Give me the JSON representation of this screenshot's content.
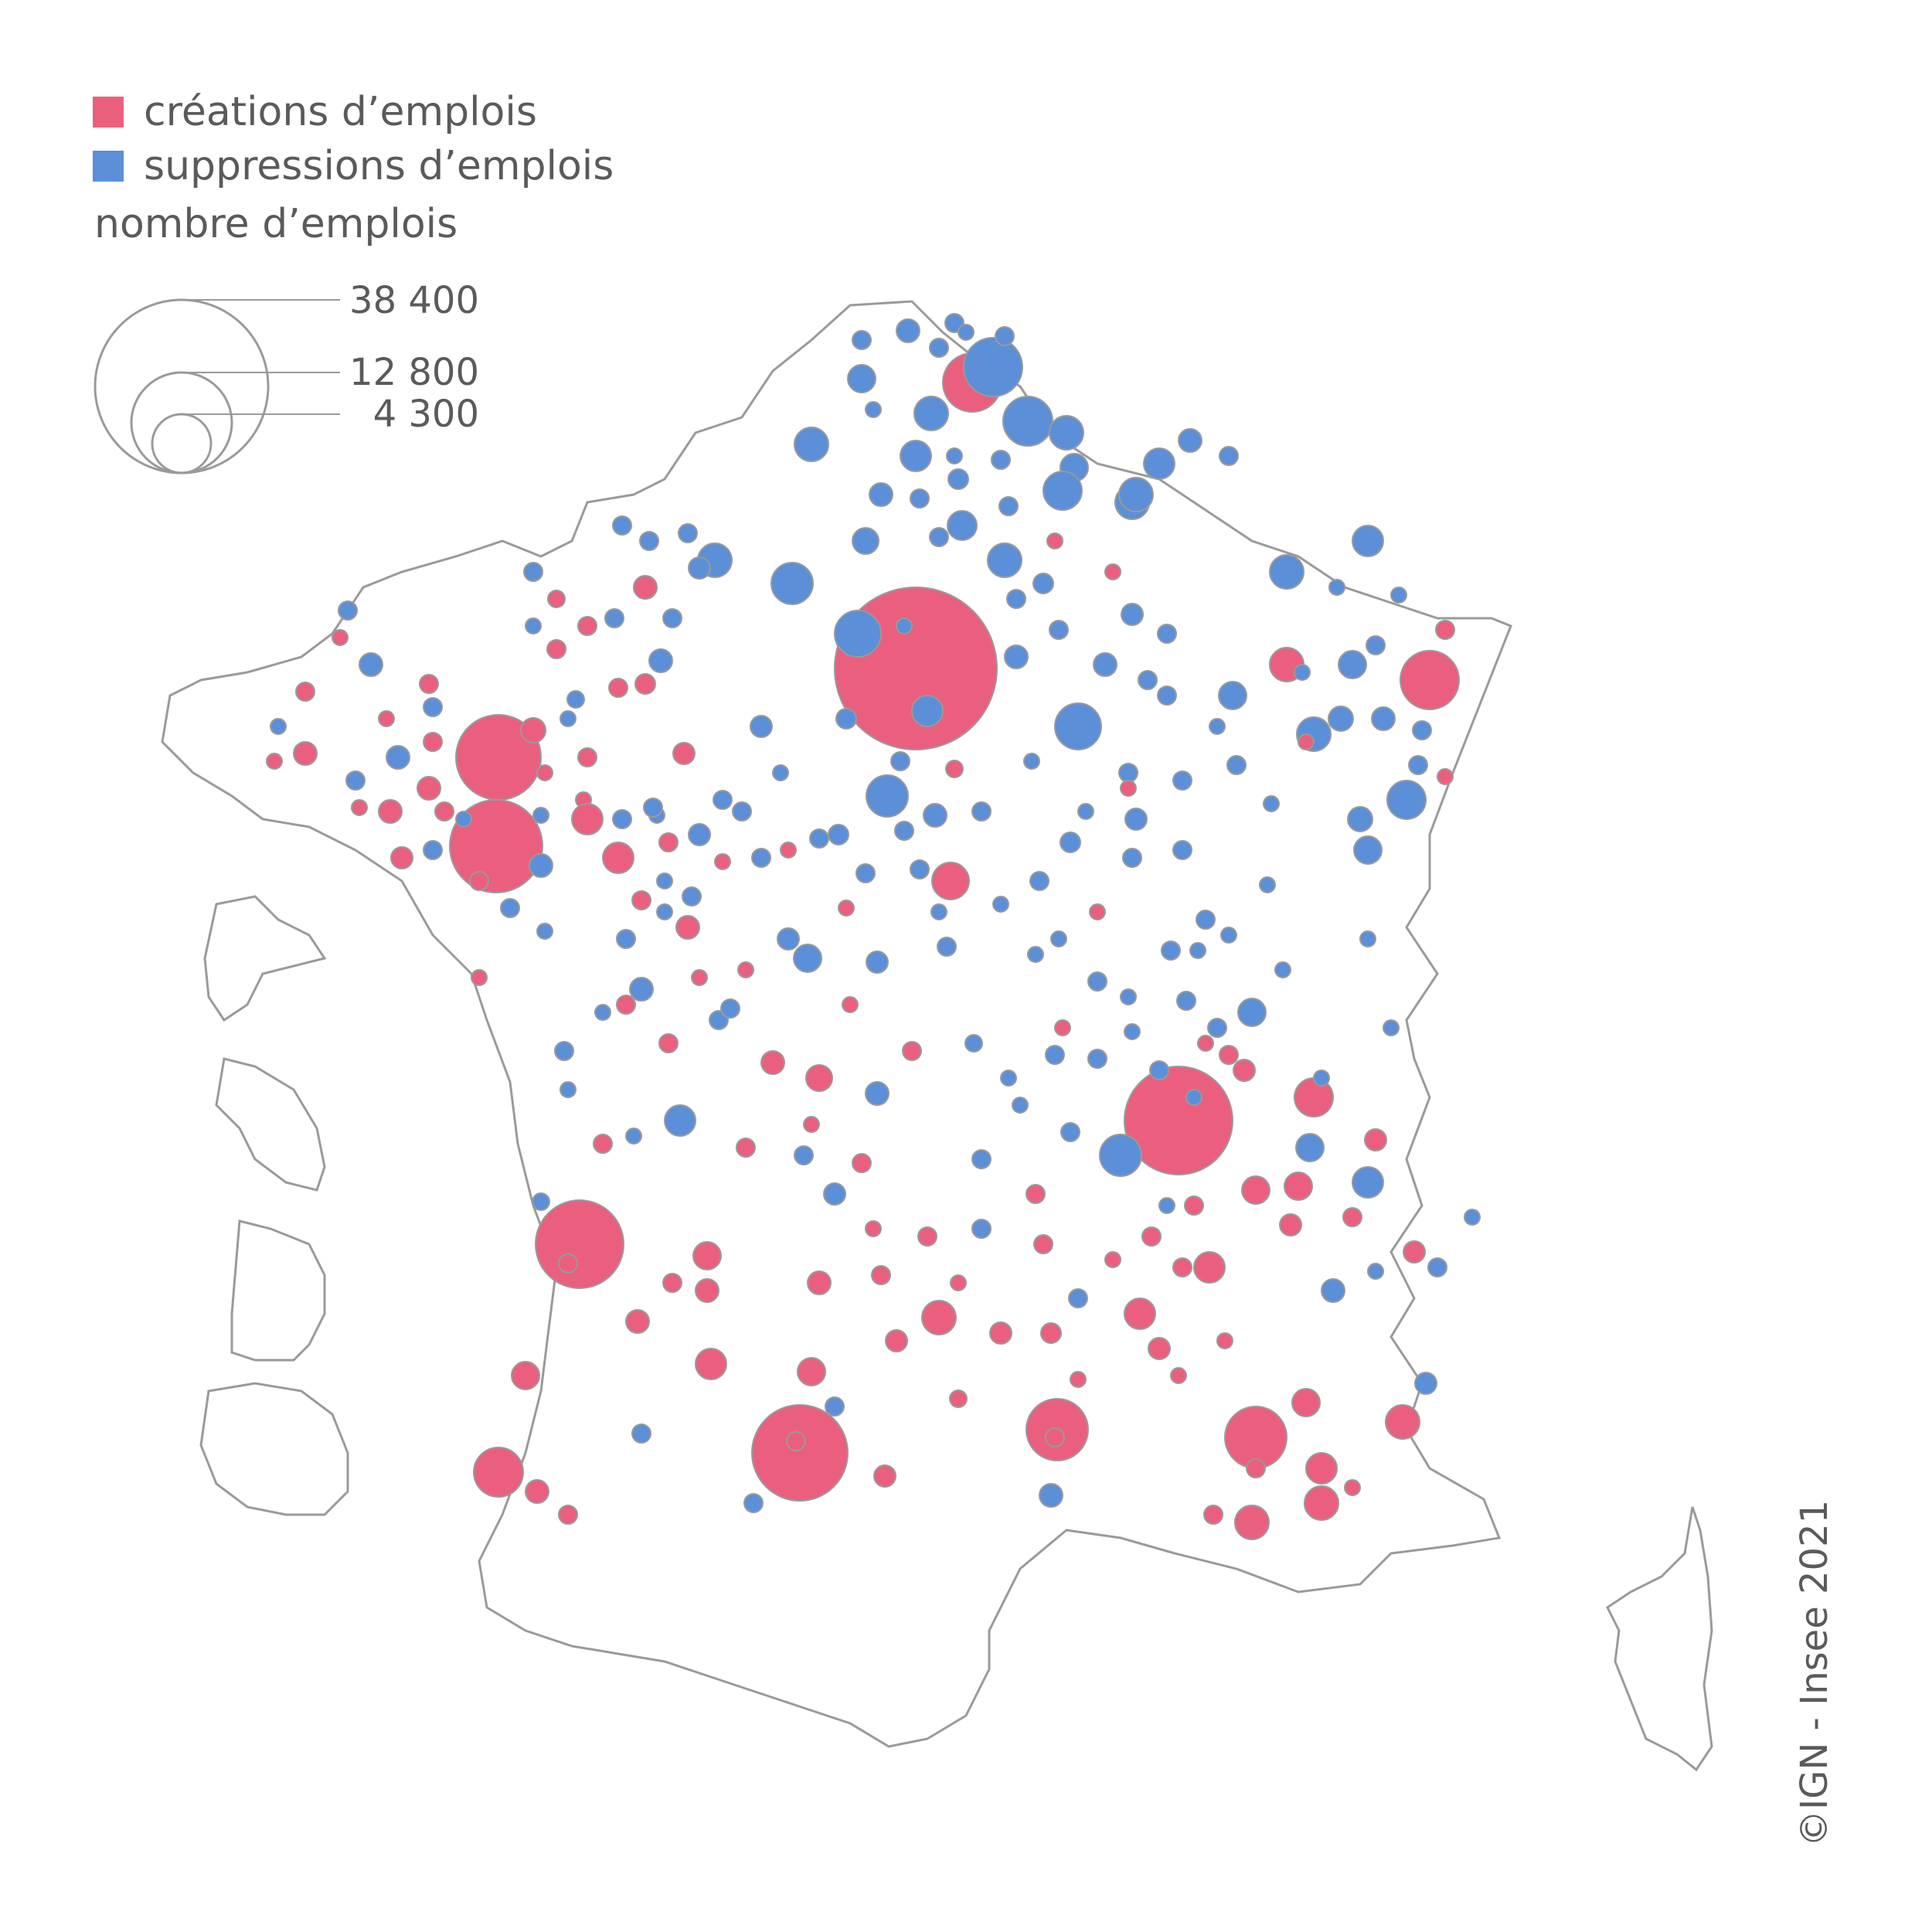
{
  "legend": {
    "creations_label": "créations d’emplois",
    "suppressions_label": "suppressions d’emplois",
    "size_title": "nombre d’emplois",
    "size_values": [
      "38 400",
      "12 800",
      "4 300"
    ]
  },
  "credit": "©IGN - Insee 2021",
  "colors": {
    "creations": "#eb5f7e",
    "suppressions": "#5b8fd8",
    "border": "#9a9a9a",
    "text": "#5a5a5a"
  }
}
